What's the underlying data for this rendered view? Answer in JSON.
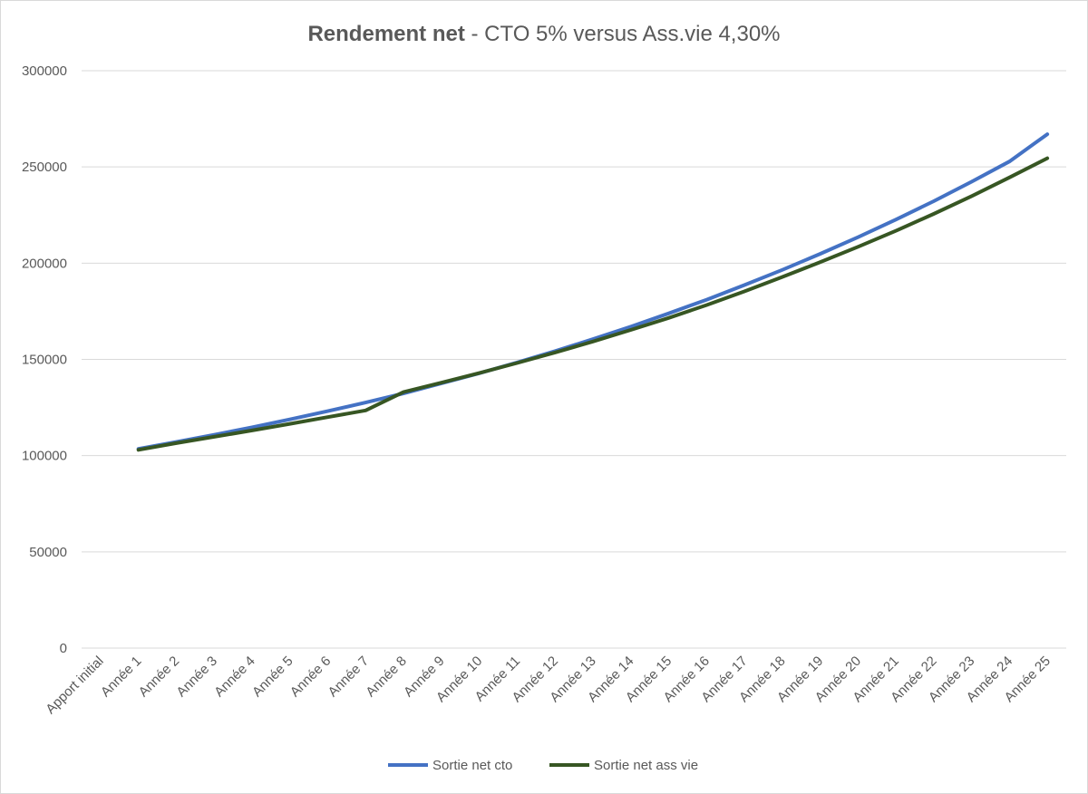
{
  "chart_data": {
    "type": "line",
    "title_bold": "Rendement net",
    "title_rest": " - CTO 5% versus Ass.vie 4,30%",
    "xlabel": "",
    "ylabel": "",
    "ylim": [
      0,
      300000
    ],
    "yticks": [
      "0",
      "50000",
      "100000",
      "150000",
      "200000",
      "250000",
      "300000"
    ],
    "grid": true,
    "legend_position": "bottom",
    "categories": [
      "Apport initial",
      "Année 1",
      "Année 2",
      "Année 3",
      "Année 4",
      "Année 5",
      "Année 6",
      "Année 7",
      "Année 8",
      "Année 9",
      "Année 10",
      "Année 11",
      "Année 12",
      "Année 13",
      "Année 14",
      "Année 15",
      "Année 16",
      "Année 17",
      "Année 18",
      "Année 19",
      "Année 20",
      "Année 21",
      "Année 22",
      "Année 23",
      "Année 24",
      "Année 25"
    ],
    "series": [
      {
        "name": "Sortie net cto",
        "color": "#4472c4",
        "values": [
          null,
          103500,
          107100,
          110800,
          114700,
          118800,
          123100,
          127600,
          132300,
          137500,
          142800,
          148400,
          154300,
          160500,
          167000,
          173900,
          181000,
          188600,
          196500,
          204800,
          213500,
          222600,
          232200,
          242300,
          252800,
          267000
        ]
      },
      {
        "name": "Sortie net ass vie",
        "color": "#375623",
        "values": [
          null,
          103000,
          106500,
          109800,
          113100,
          116500,
          120000,
          123500,
          133000,
          137900,
          142900,
          148100,
          153600,
          159300,
          165300,
          171500,
          178200,
          185300,
          192800,
          200500,
          208500,
          216800,
          225600,
          234800,
          244500,
          254500
        ]
      }
    ]
  }
}
